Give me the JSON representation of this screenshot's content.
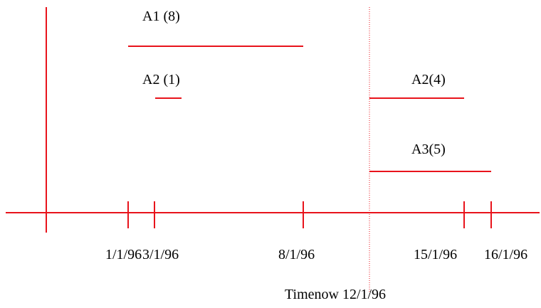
{
  "colors": {
    "line": "#e8131b",
    "text": "#000000",
    "now_line": "#e8131b"
  },
  "intervals": [
    {
      "label": "A1 (8)",
      "start": "1/1/96",
      "end": "8/1/96"
    },
    {
      "label": "A2 (1)",
      "start": "2/1/96",
      "end": "3/1/96"
    },
    {
      "label": "A2(4)",
      "start": "12/1/96",
      "end": "15/1/96"
    },
    {
      "label": "A3(5)",
      "start": "12/1/96",
      "end": "16/1/96"
    }
  ],
  "ticks": [
    "1/1/96",
    "3/1/96",
    "8/1/96",
    "15/1/96",
    "16/1/96"
  ],
  "now": {
    "label": "Timenow 12/1/96",
    "date": "12/1/96"
  }
}
